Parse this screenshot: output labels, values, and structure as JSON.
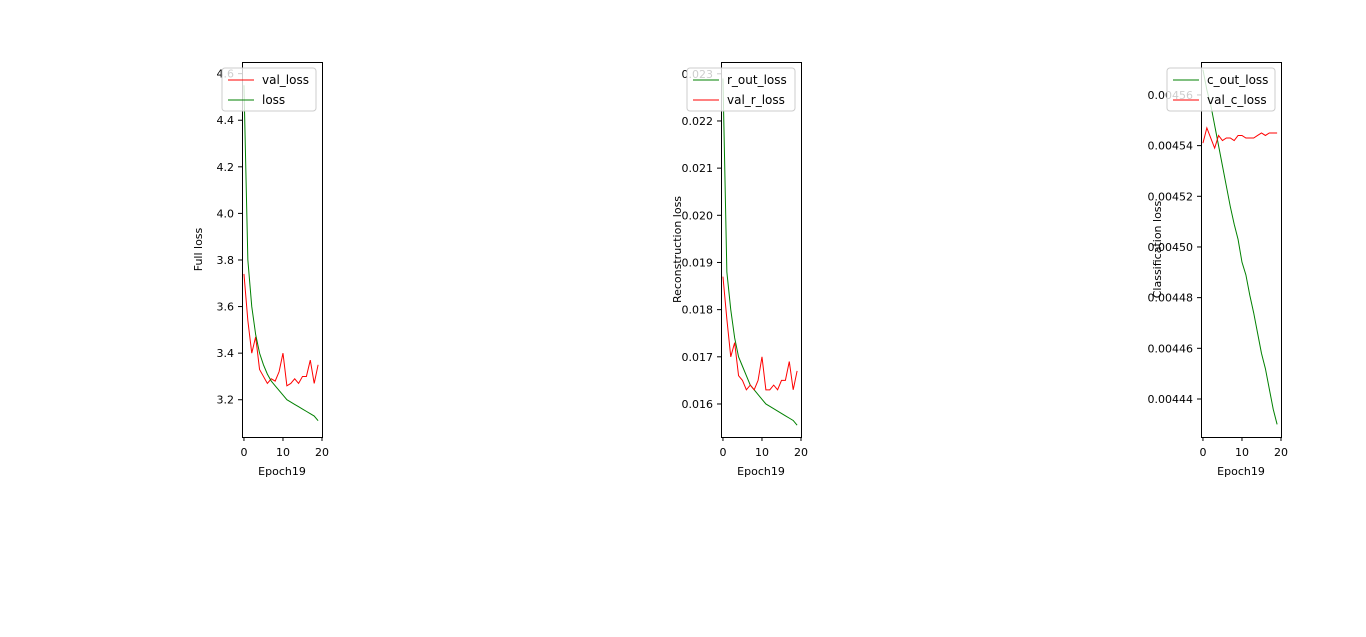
{
  "chart_data": [
    {
      "type": "line",
      "xlabel": "Epoch19",
      "ylabel": "Full loss",
      "xlim": [
        -0.5,
        20
      ],
      "ylim": [
        3.04,
        4.65
      ],
      "xticks": [
        0,
        10,
        20
      ],
      "yticks": [
        3.2,
        3.4,
        3.6,
        3.8,
        4.0,
        4.2,
        4.4,
        4.6
      ],
      "ytick_labels": [
        "3.2",
        "3.4",
        "3.6",
        "3.8",
        "4.0",
        "4.2",
        "4.4",
        "4.6"
      ],
      "legend_position": "top-right",
      "grid": false,
      "series": [
        {
          "name": "val_loss",
          "color": "#ff0000",
          "x": [
            0,
            1,
            2,
            3,
            4,
            5,
            6,
            7,
            8,
            9,
            10,
            11,
            12,
            13,
            14,
            15,
            16,
            17,
            18,
            19
          ],
          "y": [
            3.74,
            3.54,
            3.4,
            3.47,
            3.33,
            3.3,
            3.27,
            3.29,
            3.28,
            3.32,
            3.4,
            3.26,
            3.27,
            3.29,
            3.27,
            3.3,
            3.3,
            3.37,
            3.27,
            3.35
          ]
        },
        {
          "name": "loss",
          "color": "#008000",
          "x": [
            0,
            1,
            2,
            3,
            4,
            5,
            6,
            7,
            8,
            9,
            10,
            11,
            12,
            13,
            14,
            15,
            16,
            17,
            18,
            19
          ],
          "y": [
            4.55,
            3.8,
            3.6,
            3.48,
            3.4,
            3.35,
            3.31,
            3.28,
            3.26,
            3.24,
            3.22,
            3.2,
            3.19,
            3.18,
            3.17,
            3.16,
            3.15,
            3.14,
            3.13,
            3.11
          ]
        }
      ]
    },
    {
      "type": "line",
      "xlabel": "Epoch19",
      "ylabel": "Reconstruction loss",
      "xlim": [
        -0.5,
        20
      ],
      "ylim": [
        0.0153,
        0.02325
      ],
      "xticks": [
        0,
        10,
        20
      ],
      "yticks": [
        0.016,
        0.017,
        0.018,
        0.019,
        0.02,
        0.021,
        0.022,
        0.023
      ],
      "ytick_labels": [
        "0.016",
        "0.017",
        "0.018",
        "0.019",
        "0.020",
        "0.021",
        "0.022",
        "0.023"
      ],
      "legend_position": "top-right",
      "grid": false,
      "series": [
        {
          "name": "r_out_loss",
          "color": "#008000",
          "x": [
            0,
            1,
            2,
            3,
            4,
            5,
            6,
            7,
            8,
            9,
            10,
            11,
            12,
            13,
            14,
            15,
            16,
            17,
            18,
            19
          ],
          "y": [
            0.0229,
            0.0188,
            0.018,
            0.0174,
            0.017,
            0.0168,
            0.0166,
            0.0164,
            0.0163,
            0.0162,
            0.0161,
            0.016,
            0.01595,
            0.0159,
            0.01585,
            0.0158,
            0.01575,
            0.0157,
            0.01565,
            0.01555
          ]
        },
        {
          "name": "val_r_loss",
          "color": "#ff0000",
          "x": [
            0,
            1,
            2,
            3,
            4,
            5,
            6,
            7,
            8,
            9,
            10,
            11,
            12,
            13,
            14,
            15,
            16,
            17,
            18,
            19
          ],
          "y": [
            0.0187,
            0.0178,
            0.017,
            0.0173,
            0.0166,
            0.0165,
            0.0163,
            0.0164,
            0.0163,
            0.0165,
            0.017,
            0.0163,
            0.0163,
            0.0164,
            0.0163,
            0.0165,
            0.0165,
            0.0169,
            0.0163,
            0.0167
          ]
        }
      ]
    },
    {
      "type": "line",
      "xlabel": "Epoch19",
      "ylabel": "Classification loss",
      "xlim": [
        -0.5,
        20
      ],
      "ylim": [
        0.004425,
        0.004573
      ],
      "xticks": [
        0,
        10,
        20
      ],
      "yticks": [
        0.00444,
        0.00446,
        0.00448,
        0.0045,
        0.00452,
        0.00454,
        0.00456
      ],
      "ytick_labels": [
        "0.00444",
        "0.00446",
        "0.00448",
        "0.00450",
        "0.00452",
        "0.00454",
        "0.00456"
      ],
      "legend_position": "top-right",
      "grid": false,
      "series": [
        {
          "name": "c_out_loss",
          "color": "#008000",
          "x": [
            0,
            1,
            2,
            3,
            4,
            5,
            6,
            7,
            8,
            9,
            10,
            11,
            12,
            13,
            14,
            15,
            16,
            17,
            18,
            19
          ],
          "y": [
            0.00457,
            0.004562,
            0.004556,
            0.004548,
            0.00454,
            0.004532,
            0.004524,
            0.004516,
            0.004509,
            0.004503,
            0.004494,
            0.004489,
            0.004481,
            0.004474,
            0.004466,
            0.004458,
            0.004452,
            0.004444,
            0.004436,
            0.00443
          ]
        },
        {
          "name": "val_c_loss",
          "color": "#ff0000",
          "x": [
            0,
            1,
            2,
            3,
            4,
            5,
            6,
            7,
            8,
            9,
            10,
            11,
            12,
            13,
            14,
            15,
            16,
            17,
            18,
            19
          ],
          "y": [
            0.004541,
            0.004547,
            0.004543,
            0.004539,
            0.004544,
            0.004542,
            0.004543,
            0.004543,
            0.004542,
            0.004544,
            0.004544,
            0.004543,
            0.004543,
            0.004543,
            0.004544,
            0.004545,
            0.004544,
            0.004545,
            0.004545,
            0.004545
          ]
        }
      ]
    }
  ]
}
